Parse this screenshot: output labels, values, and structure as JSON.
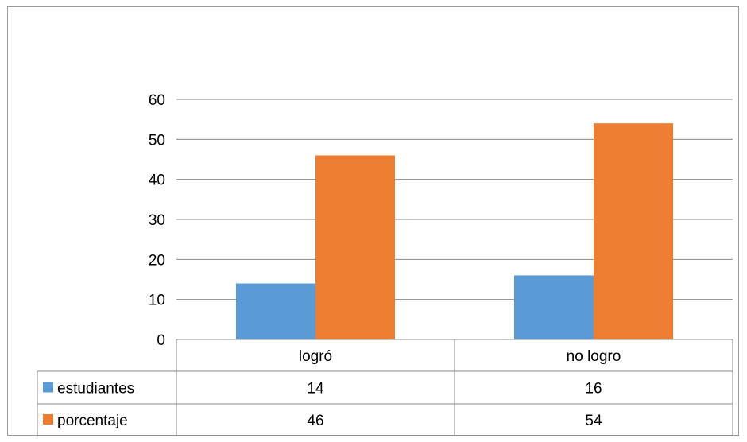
{
  "chart_data": {
    "type": "bar",
    "title": "",
    "xlabel": "",
    "ylabel": "",
    "categories": [
      "logró",
      "no logro"
    ],
    "series": [
      {
        "name": "estudiantes",
        "values": [
          14,
          16
        ],
        "color": "#5b9bd5"
      },
      {
        "name": "porcentaje",
        "values": [
          46,
          54
        ],
        "color": "#ed7d31"
      }
    ],
    "ylim": [
      0,
      60
    ],
    "y_ticks": [
      0,
      10,
      20,
      30,
      40,
      50,
      60
    ],
    "grid": true,
    "legend": "data-table"
  }
}
